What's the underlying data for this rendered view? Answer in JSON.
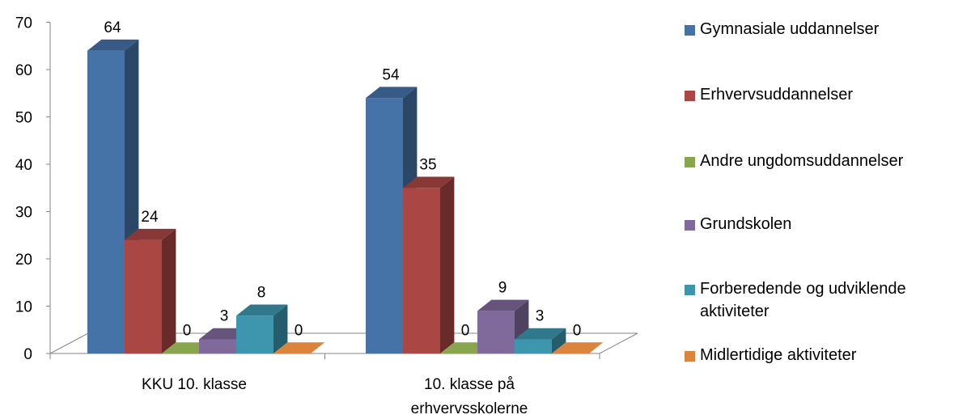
{
  "chart_data": {
    "type": "bar",
    "subtype": "3d-clustered-column",
    "title": "",
    "xlabel": "",
    "ylabel": "",
    "ylim": [
      0,
      70
    ],
    "yticks": [
      0,
      10,
      20,
      30,
      40,
      50,
      60,
      70
    ],
    "grid": false,
    "legend_position": "right",
    "categories": [
      "KKU 10. klasse",
      "10. klasse på\nerhvervsskolerne"
    ],
    "series": [
      {
        "name": "Gymnasiale uddannelser",
        "color": "#4572A7",
        "values": [
          64,
          54
        ]
      },
      {
        "name": "Erhvervsuddannelser",
        "color": "#AA4643",
        "values": [
          24,
          35
        ]
      },
      {
        "name": "Andre ungdomsuddannelser",
        "color": "#89A54E",
        "values": [
          0,
          0
        ]
      },
      {
        "name": "Grundskolen",
        "color": "#80699B",
        "values": [
          3,
          9
        ]
      },
      {
        "name": "Forberedende og udviklende\naktiviteter",
        "color": "#3D96AE",
        "values": [
          8,
          3
        ]
      },
      {
        "name": "Midlertidige aktiviteter",
        "color": "#DB843D",
        "values": [
          0,
          0
        ]
      }
    ]
  }
}
